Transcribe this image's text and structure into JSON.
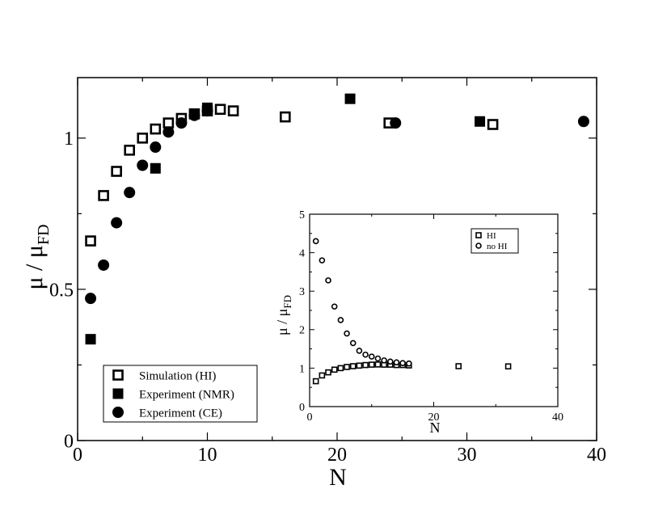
{
  "chart_data": [
    {
      "type": "scatter",
      "xlabel": "N",
      "ylabel_base": "μ / μ",
      "ylabel_sub": "FD",
      "xlim": [
        0,
        40
      ],
      "ylim": [
        0,
        1.2
      ],
      "xticks": [
        0,
        10,
        20,
        30,
        40
      ],
      "yticks": [
        0,
        0.5,
        1
      ],
      "ytick_labels": [
        "0",
        "0.5",
        "1"
      ],
      "legend_position": "bottom-left",
      "series": [
        {
          "name": "Simulation (HI)",
          "marker": "open-square",
          "x": [
            1,
            2,
            3,
            4,
            5,
            6,
            7,
            8,
            9,
            10,
            11,
            12,
            16,
            24,
            32
          ],
          "y": [
            0.66,
            0.81,
            0.89,
            0.96,
            1.0,
            1.03,
            1.05,
            1.065,
            1.08,
            1.09,
            1.095,
            1.09,
            1.07,
            1.05,
            1.045
          ]
        },
        {
          "name": "Experiment (NMR)",
          "marker": "filled-square",
          "x": [
            1,
            6,
            9,
            10,
            21,
            31
          ],
          "y": [
            0.335,
            0.9,
            1.08,
            1.1,
            1.13,
            1.055
          ]
        },
        {
          "name": "Experiment (CE)",
          "marker": "filled-circle",
          "x": [
            1,
            2,
            3,
            4,
            5,
            6,
            7,
            8,
            9,
            10,
            24.5,
            39
          ],
          "y": [
            0.47,
            0.58,
            0.72,
            0.82,
            0.91,
            0.97,
            1.02,
            1.05,
            1.075,
            1.09,
            1.05,
            1.055
          ]
        }
      ]
    },
    {
      "type": "scatter",
      "xlabel": "N",
      "ylabel_base": "μ / μ",
      "ylabel_sub": "FD",
      "xlim": [
        0,
        40
      ],
      "ylim": [
        0,
        5
      ],
      "xticks": [
        0,
        20,
        40
      ],
      "yticks": [
        0,
        1,
        2,
        3,
        4,
        5
      ],
      "legend_position": "top-right",
      "series": [
        {
          "name": "HI",
          "marker": "open-square",
          "x": [
            1,
            2,
            3,
            4,
            5,
            6,
            7,
            8,
            9,
            10,
            11,
            12,
            13,
            14,
            15,
            16,
            24,
            32
          ],
          "y": [
            0.66,
            0.81,
            0.89,
            0.96,
            1.0,
            1.03,
            1.05,
            1.065,
            1.08,
            1.09,
            1.095,
            1.09,
            1.09,
            1.08,
            1.08,
            1.07,
            1.05,
            1.045
          ]
        },
        {
          "name": "no HI",
          "marker": "open-circle",
          "x": [
            1,
            2,
            3,
            4,
            5,
            6,
            7,
            8,
            9,
            10,
            11,
            12,
            13,
            14,
            15,
            16
          ],
          "y": [
            4.3,
            3.8,
            3.28,
            2.6,
            2.25,
            1.9,
            1.65,
            1.45,
            1.35,
            1.3,
            1.25,
            1.2,
            1.17,
            1.15,
            1.13,
            1.12
          ]
        }
      ]
    }
  ]
}
